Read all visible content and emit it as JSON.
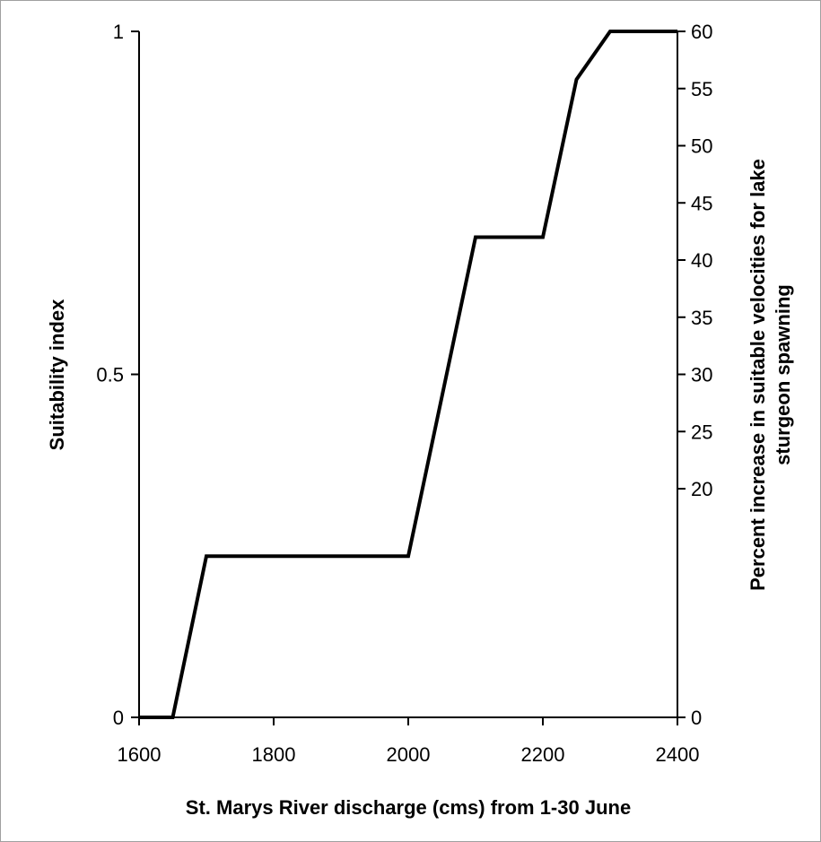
{
  "chart_data": {
    "type": "line",
    "title": "",
    "xlabel": "St. Marys River discharge (cms) from 1-30 June",
    "ylabel": "Suitability index",
    "y2label_line1": "Percent increase in suitable velocities for lake",
    "y2label_line2": "sturgeon spawning",
    "xlim": [
      1600,
      2400
    ],
    "ylim": [
      0,
      1
    ],
    "y2lim": [
      0,
      60
    ],
    "xticks": [
      1600,
      1800,
      2000,
      2200,
      2400
    ],
    "yticks": [
      0,
      0.5,
      1
    ],
    "y2ticks": [
      0,
      20,
      25,
      30,
      35,
      40,
      45,
      50,
      55,
      60
    ],
    "grid": false,
    "legend": "none",
    "line_color": "#000000",
    "series": [
      {
        "x": [
          1600,
          1650,
          1700,
          2000,
          2100,
          2200,
          2250,
          2300,
          2400
        ],
        "y": [
          0,
          0,
          0.235,
          0.235,
          0.7,
          0.7,
          0.93,
          1,
          1
        ]
      }
    ]
  }
}
